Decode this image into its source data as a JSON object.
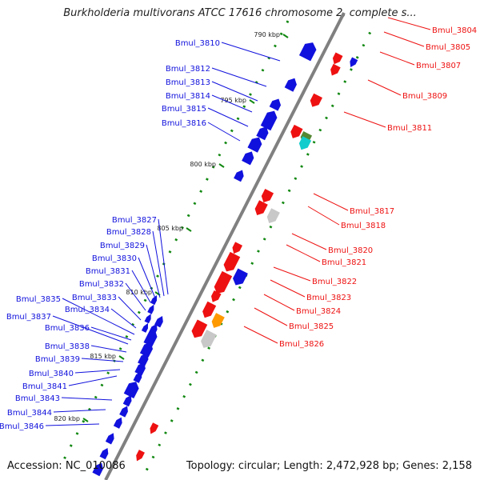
{
  "title": "Burkholderia multivorans ATCC 17616 chromosome 2, complete s...",
  "footer": {
    "accession": "Accession: NC_010086",
    "topology": "Topology: circular; Length: 2,472,928 bp; Genes: 2,158"
  },
  "colors": {
    "backbone": "#808080",
    "forward": "#ee1111",
    "reverse": "#1111dd",
    "tick": "#118811",
    "grey_gene": "#c8c8c8",
    "orange_gene": "#ff9900",
    "cyan_gene": "#11cccc",
    "green_gene": "#558833"
  },
  "scale_ticks": [
    "790 kbp",
    "795 kbp",
    "800 kbp",
    "805 kbp",
    "810 kbp",
    "815 kbp",
    "820 kbp"
  ],
  "reverse_strand_labels": [
    "Bmul_3810",
    "Bmul_3812",
    "Bmul_3813",
    "Bmul_3814",
    "Bmul_3815",
    "Bmul_3816",
    "Bmul_3827",
    "Bmul_3828",
    "Bmul_3829",
    "Bmul_3830",
    "Bmul_3831",
    "Bmul_3832",
    "Bmul_3833",
    "Bmul_3834",
    "Bmul_3835",
    "Bmul_3836",
    "Bmul_3837",
    "Bmul_3838",
    "Bmul_3839",
    "Bmul_3840",
    "Bmul_3841",
    "Bmul_3843",
    "Bmul_3844",
    "Bmul_3846"
  ],
  "forward_strand_labels": [
    "Bmul_3804",
    "Bmul_3805",
    "Bmul_3807",
    "Bmul_3809",
    "Bmul_3811",
    "Bmul_3817",
    "Bmul_3818",
    "Bmul_3820",
    "Bmul_3821",
    "Bmul_3822",
    "Bmul_3823",
    "Bmul_3824",
    "Bmul_3825",
    "Bmul_3826"
  ]
}
